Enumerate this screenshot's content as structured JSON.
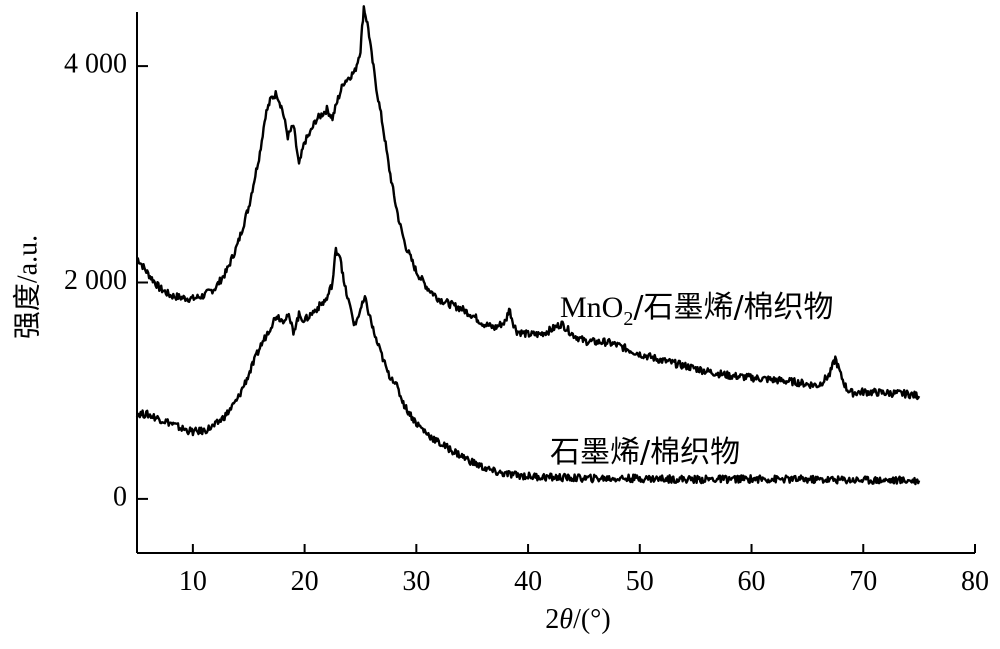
{
  "chart_data": {
    "type": "line",
    "xlabel_parts": [
      "2",
      "θ",
      "/(°)"
    ],
    "ylabel": "强度/a.u.",
    "xlim": [
      5,
      80
    ],
    "ylim": [
      -500,
      4500
    ],
    "x_ticks": [
      10,
      20,
      30,
      40,
      50,
      60,
      70,
      80
    ],
    "x_tick_labels": [
      "10",
      "20",
      "30",
      "40",
      "50",
      "60",
      "70",
      "80"
    ],
    "y_ticks": [
      0,
      2000,
      4000
    ],
    "y_tick_labels": [
      "0",
      "2 000",
      "4 000"
    ],
    "grid": false,
    "line_color": "#000000",
    "series": [
      {
        "name_parts": [
          "MnO",
          "2",
          "/石墨烯/棉织物"
        ],
        "points": [
          [
            5,
            2230
          ],
          [
            6,
            2080
          ],
          [
            7,
            1950
          ],
          [
            8,
            1880
          ],
          [
            9,
            1860
          ],
          [
            10,
            1850
          ],
          [
            11,
            1880
          ],
          [
            12,
            1950
          ],
          [
            13,
            2100
          ],
          [
            14,
            2350
          ],
          [
            15,
            2700
          ],
          [
            16,
            3200
          ],
          [
            16.5,
            3550
          ],
          [
            17,
            3700
          ],
          [
            17.5,
            3750
          ],
          [
            18,
            3600
          ],
          [
            18.5,
            3350
          ],
          [
            19,
            3450
          ],
          [
            19.5,
            3080
          ],
          [
            20,
            3300
          ],
          [
            20.5,
            3380
          ],
          [
            21,
            3500
          ],
          [
            21.5,
            3550
          ],
          [
            22,
            3600
          ],
          [
            22.5,
            3520
          ],
          [
            23,
            3700
          ],
          [
            23.5,
            3850
          ],
          [
            24,
            3900
          ],
          [
            24.5,
            3950
          ],
          [
            25,
            4150
          ],
          [
            25.3,
            4550
          ],
          [
            25.7,
            4350
          ],
          [
            26,
            4100
          ],
          [
            26.5,
            3750
          ],
          [
            27,
            3450
          ],
          [
            27.5,
            3100
          ],
          [
            28,
            2800
          ],
          [
            28.5,
            2550
          ],
          [
            29,
            2350
          ],
          [
            30,
            2100
          ],
          [
            31,
            1950
          ],
          [
            32,
            1850
          ],
          [
            33,
            1800
          ],
          [
            34,
            1760
          ],
          [
            35,
            1700
          ],
          [
            36,
            1620
          ],
          [
            37,
            1580
          ],
          [
            38,
            1640
          ],
          [
            38.3,
            1760
          ],
          [
            38.7,
            1620
          ],
          [
            39,
            1550
          ],
          [
            40,
            1520
          ],
          [
            41,
            1520
          ],
          [
            42,
            1560
          ],
          [
            43,
            1620
          ],
          [
            44,
            1520
          ],
          [
            45,
            1460
          ],
          [
            46,
            1450
          ],
          [
            47,
            1450
          ],
          [
            48,
            1420
          ],
          [
            49,
            1380
          ],
          [
            50,
            1340
          ],
          [
            52,
            1280
          ],
          [
            54,
            1230
          ],
          [
            56,
            1180
          ],
          [
            58,
            1140
          ],
          [
            60,
            1120
          ],
          [
            62,
            1100
          ],
          [
            64,
            1080
          ],
          [
            65,
            1060
          ],
          [
            66,
            1050
          ],
          [
            67,
            1150
          ],
          [
            67.5,
            1300
          ],
          [
            68,
            1140
          ],
          [
            68.5,
            1020
          ],
          [
            69,
            980
          ],
          [
            70,
            990
          ],
          [
            72,
            980
          ],
          [
            74,
            970
          ],
          [
            75,
            950
          ]
        ]
      },
      {
        "name_parts": [
          "石墨烯/棉织物"
        ],
        "points": [
          [
            5,
            790
          ],
          [
            6,
            780
          ],
          [
            7,
            740
          ],
          [
            8,
            700
          ],
          [
            9,
            650
          ],
          [
            10,
            620
          ],
          [
            11,
            630
          ],
          [
            12,
            680
          ],
          [
            13,
            780
          ],
          [
            14,
            920
          ],
          [
            15,
            1150
          ],
          [
            16,
            1400
          ],
          [
            17,
            1600
          ],
          [
            17.5,
            1700
          ],
          [
            18,
            1650
          ],
          [
            18.5,
            1700
          ],
          [
            19,
            1550
          ],
          [
            19.5,
            1700
          ],
          [
            20,
            1650
          ],
          [
            21,
            1750
          ],
          [
            22,
            1850
          ],
          [
            22.5,
            2000
          ],
          [
            22.8,
            2300
          ],
          [
            23.2,
            2250
          ],
          [
            23.5,
            2000
          ],
          [
            24,
            1800
          ],
          [
            24.5,
            1600
          ],
          [
            25,
            1750
          ],
          [
            25.4,
            1850
          ],
          [
            25.8,
            1700
          ],
          [
            26.3,
            1500
          ],
          [
            27,
            1300
          ],
          [
            27.5,
            1150
          ],
          [
            28,
            1100
          ],
          [
            29,
            850
          ],
          [
            30,
            700
          ],
          [
            31,
            600
          ],
          [
            32,
            520
          ],
          [
            33,
            460
          ],
          [
            34,
            400
          ],
          [
            35,
            340
          ],
          [
            36,
            290
          ],
          [
            37,
            250
          ],
          [
            38,
            230
          ],
          [
            40,
            210
          ],
          [
            42,
            200
          ],
          [
            45,
            190
          ],
          [
            50,
            190
          ],
          [
            55,
            180
          ],
          [
            60,
            185
          ],
          [
            65,
            180
          ],
          [
            70,
            175
          ],
          [
            75,
            170
          ]
        ]
      }
    ]
  }
}
